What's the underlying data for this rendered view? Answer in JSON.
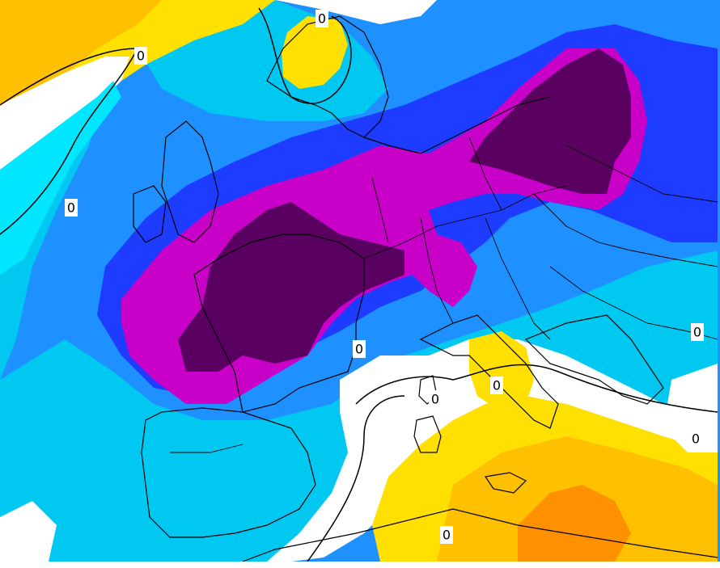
{
  "map": {
    "region": "Europe and North Africa",
    "type": "gridded-anomaly-map",
    "colors": {
      "very_cold": "#5a0060",
      "cold_magenta": "#c800c8",
      "deep_blue": "#1e3cff",
      "mid_blue": "#0a78ff",
      "light_cyan": "#00c8f0",
      "pale_cyan": "#00e6ff",
      "white": "#ffffff",
      "yellow": "#ffe000",
      "gold": "#ffc000",
      "orange": "#ff9000",
      "coastline": "#000000",
      "contour": "#000000"
    },
    "contour_labels": [
      "0",
      "0",
      "0",
      "0",
      "0",
      "0",
      "0",
      "0",
      "0"
    ]
  }
}
